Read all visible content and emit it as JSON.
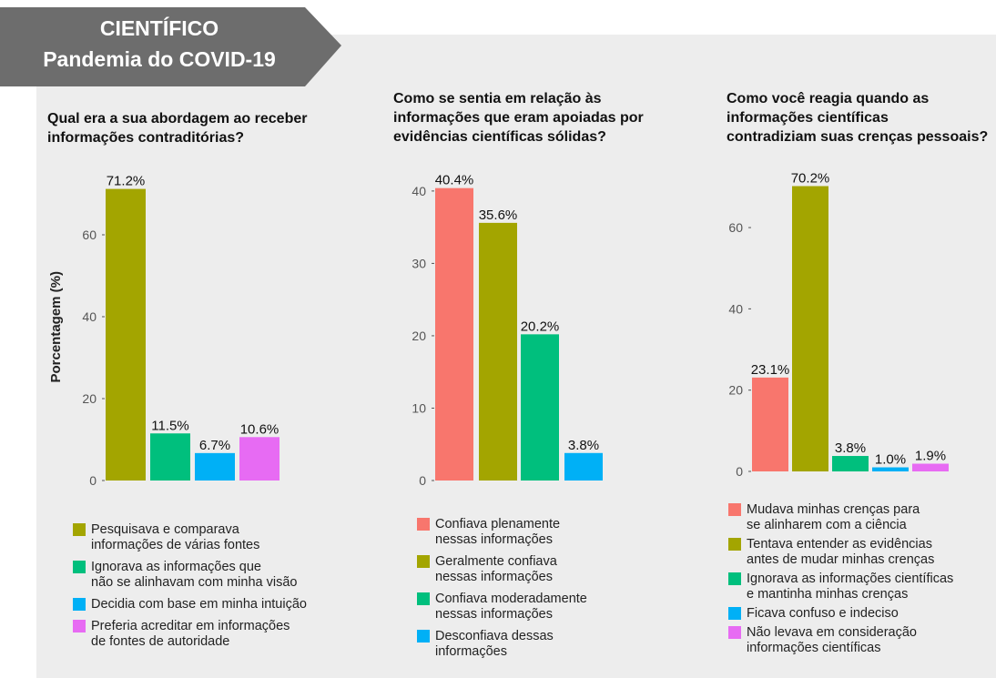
{
  "header": {
    "title": "CIENTÍFICO",
    "subtitle": "Pandemia do COVID-19"
  },
  "chart_data": [
    {
      "type": "bar",
      "title": "Qual era a sua abordagem ao receber\ninformações contraditórias?",
      "y_label": "Porcentagem (%)",
      "categories": [
        "Pesquisava e comparava\ninformações de várias fontes",
        "Ignorava as informações que\nnão se alinhavam com minha visão",
        "Decidia com base em minha intuição",
        "Preferia acreditar em informações\nde fontes de autoridade"
      ],
      "values": [
        71.2,
        11.5,
        6.7,
        10.6
      ],
      "value_labels": [
        "71.2%",
        "11.5%",
        "6.7%",
        "10.6%"
      ],
      "colors": [
        "#a3a500",
        "#00bf7d",
        "#00b0f6",
        "#e76bf3"
      ],
      "ylim": [
        0,
        75
      ],
      "yticks": [
        0,
        20,
        40,
        60
      ]
    },
    {
      "type": "bar",
      "title": "Como se sentia em relação às\ninformações que eram apoiadas por\nevidências científicas sólidas?",
      "categories": [
        "Confiava plenamente\nnessas informações",
        "Geralmente confiava\nnessas informações",
        "Confiava moderadamente\nnessas informações",
        "Desconfiava dessas\ninformações"
      ],
      "values": [
        40.4,
        35.6,
        20.2,
        3.8
      ],
      "value_labels": [
        "40.4%",
        "35.6%",
        "20.2%",
        "3.8%"
      ],
      "colors": [
        "#f8766d",
        "#a3a500",
        "#00bf7d",
        "#00b0f6"
      ],
      "ylim": [
        0,
        42.5
      ],
      "yticks": [
        0,
        10,
        20,
        30,
        40
      ]
    },
    {
      "type": "bar",
      "title": "Como você reagia quando as\ninformações científicas\ncontradiziam suas crenças pessoais?",
      "categories": [
        "Mudava minhas crenças para\nse alinharem com a ciência",
        "Tentava entender as evidências\nantes de mudar minhas crenças",
        "Ignorava as informações científicas\ne mantinha minhas crenças",
        "Ficava confuso e indeciso",
        "Não levava em consideração\ninformações científicas"
      ],
      "values": [
        23.1,
        70.2,
        3.8,
        1.0,
        1.9
      ],
      "value_labels": [
        "23.1%",
        "70.2%",
        "3.8%",
        "1.0%",
        "1.9%"
      ],
      "colors": [
        "#f8766d",
        "#a3a500",
        "#00bf7d",
        "#00b0f6",
        "#e76bf3"
      ],
      "ylim": [
        0,
        73
      ],
      "yticks": [
        0,
        20,
        40,
        60
      ]
    }
  ]
}
